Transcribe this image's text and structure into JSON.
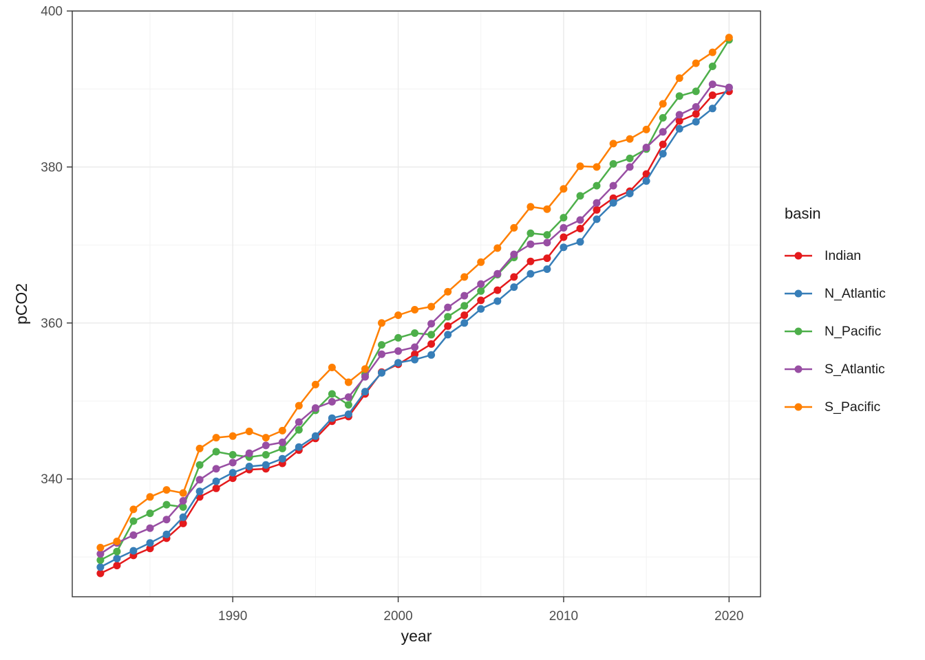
{
  "chart_data": {
    "type": "line",
    "title": "",
    "xlabel": "year",
    "ylabel": "pCO2",
    "legend_title": "basin",
    "legend_position": "right",
    "grid": true,
    "x_range": [
      1980.3,
      2021.9
    ],
    "y_range": [
      324.9,
      400
    ],
    "x_major_ticks": [
      1990,
      2000,
      2010,
      2020
    ],
    "x_minor_ticks": [
      1985,
      1995,
      2005,
      2015
    ],
    "y_major_ticks": [
      340,
      360,
      380,
      400
    ],
    "y_minor_ticks": [
      330,
      350,
      370,
      390
    ],
    "x": [
      1982,
      1983,
      1984,
      1985,
      1986,
      1987,
      1988,
      1989,
      1990,
      1991,
      1992,
      1993,
      1994,
      1995,
      1996,
      1997,
      1998,
      1999,
      2000,
      2001,
      2002,
      2003,
      2004,
      2005,
      2006,
      2007,
      2008,
      2009,
      2010,
      2011,
      2012,
      2013,
      2014,
      2015,
      2016,
      2017,
      2018,
      2019,
      2020
    ],
    "series": [
      {
        "name": "Indian",
        "color": "#E41A1C",
        "values": [
          327.9,
          328.9,
          330.2,
          331.1,
          332.4,
          334.3,
          337.7,
          338.8,
          340.1,
          341.2,
          341.3,
          342.0,
          343.7,
          345.2,
          347.4,
          348.0,
          350.9,
          353.7,
          354.7,
          356.0,
          357.3,
          359.6,
          361.0,
          362.9,
          364.2,
          365.9,
          367.9,
          368.3,
          371.0,
          372.1,
          374.5,
          376.0,
          376.9,
          379.1,
          382.9,
          385.9,
          386.8,
          389.2,
          389.7
        ]
      },
      {
        "name": "N_Atlantic",
        "color": "#377EB8",
        "values": [
          328.7,
          329.8,
          330.8,
          331.8,
          332.9,
          335.1,
          338.4,
          339.7,
          340.8,
          341.6,
          341.8,
          342.6,
          344.1,
          345.5,
          347.8,
          348.3,
          351.2,
          353.6,
          354.9,
          355.3,
          355.9,
          358.5,
          360.0,
          361.8,
          362.8,
          364.6,
          366.3,
          366.9,
          369.7,
          370.4,
          373.3,
          375.4,
          376.6,
          378.2,
          381.7,
          384.9,
          385.8,
          387.5,
          390.2
        ]
      },
      {
        "name": "N_Pacific",
        "color": "#4DAF4A",
        "values": [
          329.6,
          330.7,
          334.6,
          335.6,
          336.7,
          336.4,
          341.8,
          343.5,
          343.1,
          342.8,
          343.1,
          343.9,
          346.3,
          348.8,
          350.9,
          349.5,
          353.4,
          357.2,
          358.1,
          358.7,
          358.5,
          360.8,
          362.2,
          364.1,
          366.2,
          368.4,
          371.5,
          371.3,
          373.5,
          376.3,
          377.6,
          380.4,
          381.1,
          382.3,
          386.3,
          389.1,
          389.7,
          392.9,
          396.3
        ]
      },
      {
        "name": "S_Atlantic",
        "color": "#984EA3",
        "values": [
          330.4,
          331.8,
          332.8,
          333.7,
          334.8,
          337.2,
          339.9,
          341.3,
          342.1,
          343.3,
          344.3,
          344.7,
          347.3,
          349.1,
          349.9,
          350.5,
          353.1,
          356.0,
          356.4,
          356.9,
          359.9,
          362.0,
          363.5,
          365.0,
          366.3,
          368.8,
          370.1,
          370.3,
          372.2,
          373.2,
          375.4,
          377.6,
          380.0,
          382.5,
          384.5,
          386.7,
          387.7,
          390.6,
          390.2
        ]
      },
      {
        "name": "S_Pacific",
        "color": "#FF7F00",
        "values": [
          331.2,
          332.0,
          336.1,
          337.7,
          338.6,
          338.2,
          343.9,
          345.3,
          345.5,
          346.1,
          345.3,
          346.2,
          349.4,
          352.1,
          354.3,
          352.4,
          354.1,
          360.0,
          361.0,
          361.7,
          362.1,
          364.0,
          365.9,
          367.8,
          369.6,
          372.2,
          374.9,
          374.6,
          377.2,
          380.1,
          380.0,
          383.0,
          383.6,
          384.8,
          388.1,
          391.4,
          393.3,
          394.7,
          396.6
        ]
      }
    ]
  },
  "theme": {
    "panel_background": "#ffffff",
    "panel_border_color": "#333333",
    "major_grid_color": "#e9e9e9",
    "minor_grid_color": "#f2f2f2",
    "tick_color": "#333333",
    "axis_text_color": "#4d4d4d",
    "axis_title_color": "#1a1a1a"
  }
}
